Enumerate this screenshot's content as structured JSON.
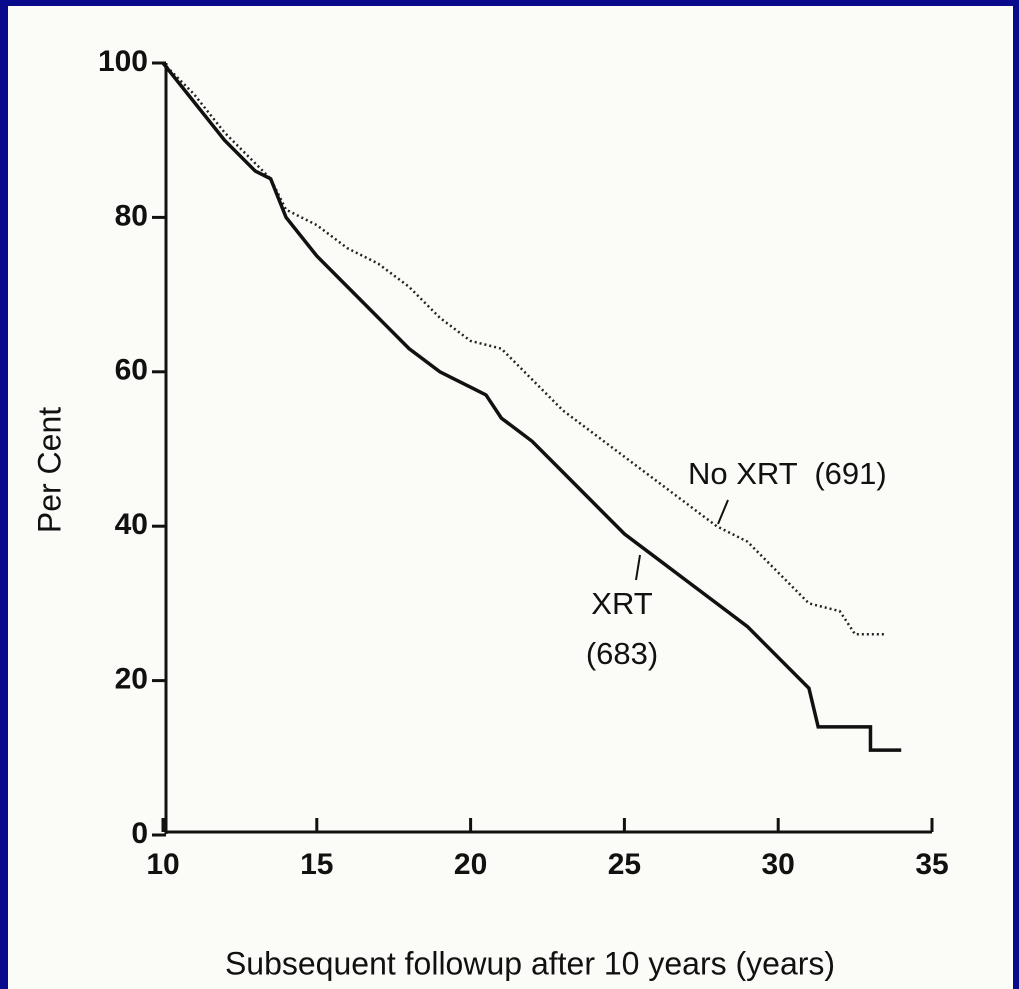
{
  "chart_data": {
    "type": "line",
    "x_label": "Subsequent followup after 10 years (years)",
    "y_label": "Per Cent",
    "xlim": [
      10,
      35
    ],
    "xticks": [
      10,
      15,
      20,
      25,
      30,
      35
    ],
    "ylim": [
      0,
      100
    ],
    "yticks": [
      0,
      20,
      40,
      60,
      80,
      100
    ],
    "grid": false,
    "series": [
      {
        "name": "No XRT  (691)",
        "color": "#222222",
        "style": "dotted",
        "x": [
          10,
          11,
          12,
          13,
          13.5,
          14,
          15,
          16,
          17,
          18,
          19,
          20,
          21,
          22,
          23,
          24,
          25,
          26,
          27,
          28,
          29,
          30,
          31,
          32,
          32.5,
          33.5
        ],
        "values": [
          100,
          96,
          91,
          87,
          85,
          81,
          79,
          76,
          74,
          71,
          67,
          64,
          63,
          59,
          55,
          52,
          49,
          46,
          43,
          40,
          38,
          34,
          30,
          29,
          26,
          26
        ]
      },
      {
        "name": "XRT (683)",
        "color": "#111111",
        "style": "solid",
        "x": [
          10,
          11,
          12,
          13,
          13.5,
          14,
          15,
          16,
          17,
          18,
          19,
          20,
          20.5,
          21,
          22,
          23,
          24,
          25,
          26,
          27,
          28,
          29,
          30,
          31,
          31.3,
          33,
          33,
          34
        ],
        "values": [
          100,
          95,
          90,
          86,
          85,
          80,
          75,
          71,
          67,
          63,
          60,
          58,
          57,
          54,
          51,
          47,
          43,
          39,
          36,
          33,
          30,
          27,
          23,
          19,
          14,
          14,
          11,
          11
        ]
      }
    ]
  }
}
